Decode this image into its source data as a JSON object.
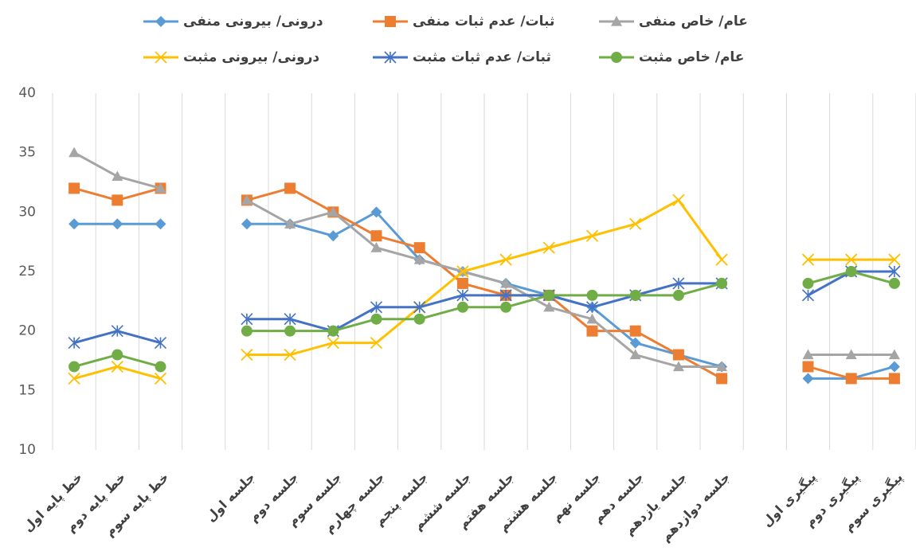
{
  "chart_data": {
    "type": "line",
    "categories": [
      "خط پایه اول",
      "خط پایه دوم",
      "خط پایه سوم",
      null,
      "جلسه اول",
      "جلسه دوم",
      "جلسه سوم",
      "جلسه چهارم",
      "جلسه پنجم",
      "جلسه ششم",
      "جلسه هفتم",
      "جلسه هشتم",
      "جلسه نهم",
      "جلسه دهم",
      "جلسه یازدهم",
      "جلسه دوازدهم",
      null,
      "پیگیری اول",
      "پیگیری دوم",
      "پیگیری سوم"
    ],
    "series": [
      {
        "name": "درونی/ بیرونی منفی",
        "color": "#5b9bd5",
        "marker": "diamond",
        "values": [
          29,
          29,
          29,
          null,
          29,
          29,
          28,
          30,
          26,
          25,
          24,
          23,
          22,
          19,
          18,
          17,
          null,
          16,
          16,
          17
        ]
      },
      {
        "name": "ثبات/ عدم ثبات منفی",
        "color": "#ed7d31",
        "marker": "square",
        "values": [
          32,
          31,
          32,
          null,
          31,
          32,
          30,
          28,
          27,
          24,
          23,
          23,
          20,
          20,
          18,
          16,
          null,
          17,
          16,
          16
        ]
      },
      {
        "name": "عام/ خاص منفی",
        "color": "#a5a5a5",
        "marker": "triangle",
        "values": [
          35,
          33,
          32,
          null,
          31,
          29,
          30,
          27,
          26,
          25,
          24,
          22,
          21,
          18,
          17,
          17,
          null,
          18,
          18,
          18
        ]
      },
      {
        "name": "درونی/ بیرونی مثبت",
        "color": "#ffc000",
        "marker": "x",
        "values": [
          16,
          17,
          16,
          null,
          18,
          18,
          19,
          19,
          22,
          25,
          26,
          27,
          28,
          29,
          31,
          26,
          null,
          26,
          26,
          26
        ]
      },
      {
        "name": "ثبات/ عدم ثبات مثبت",
        "color": "#4472c4",
        "marker": "star",
        "values": [
          19,
          20,
          19,
          null,
          21,
          21,
          20,
          22,
          22,
          23,
          23,
          23,
          22,
          23,
          24,
          24,
          null,
          23,
          25,
          25
        ]
      },
      {
        "name": "عام/ خاص مثبت",
        "color": "#70ad47",
        "marker": "circle",
        "values": [
          17,
          18,
          17,
          null,
          20,
          20,
          20,
          21,
          21,
          22,
          22,
          23,
          23,
          23,
          23,
          24,
          null,
          24,
          25,
          24
        ]
      }
    ],
    "ylim": [
      10,
      40
    ],
    "yticks": [
      10,
      15,
      20,
      25,
      30,
      35,
      40
    ],
    "grid": false,
    "category_separators": true,
    "legend": "top"
  }
}
